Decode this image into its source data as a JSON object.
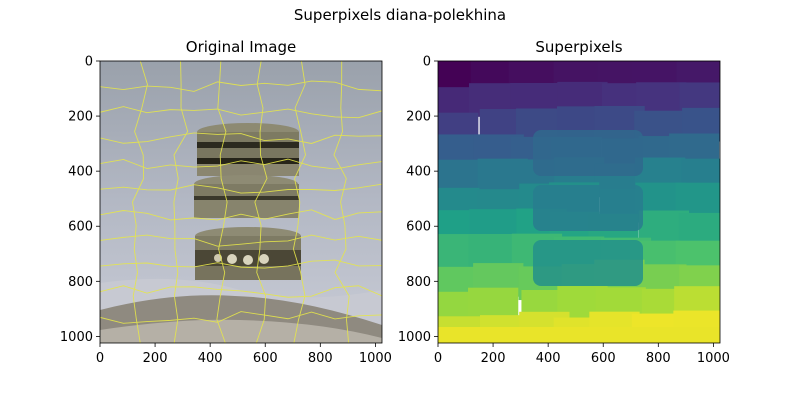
{
  "figure": {
    "title": "Superpixels diana-polekhina"
  },
  "chart_data": [
    {
      "type": "image",
      "title": "Original Image",
      "xlim": [
        0,
        1024
      ],
      "ylim": [
        1024,
        0
      ],
      "xticks": [
        0,
        200,
        400,
        600,
        800,
        1000
      ],
      "yticks": [
        0,
        200,
        400,
        600,
        800,
        1000
      ],
      "content": "photo of three stacked macarons with yellow superpixel boundary overlay",
      "boundary_color": "#e6e64a"
    },
    {
      "type": "heatmap",
      "title": "Superpixels",
      "colormap": "viridis",
      "xlim": [
        0,
        1024
      ],
      "ylim": [
        1024,
        0
      ],
      "xticks": [
        0,
        200,
        400,
        600,
        800,
        1000
      ],
      "yticks": [
        0,
        200,
        400,
        600,
        800,
        1000
      ],
      "band_colors": [
        "#440154",
        "#46327e",
        "#365c8d",
        "#277f8e",
        "#1fa187",
        "#4ac16d",
        "#a0da39",
        "#fde725"
      ]
    }
  ]
}
